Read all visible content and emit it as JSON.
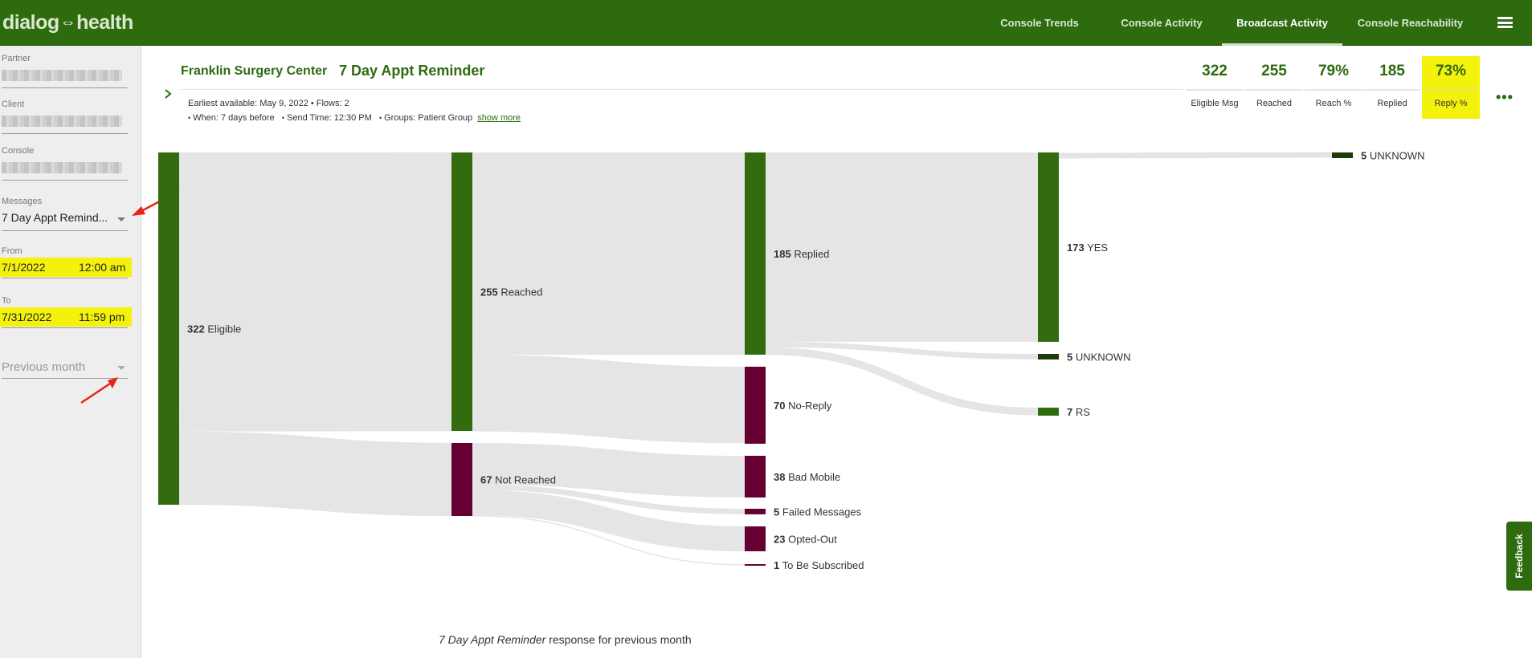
{
  "brand": {
    "logo_left": "dialog",
    "logo_sep": "⇔",
    "logo_right": "health"
  },
  "nav": {
    "items": [
      {
        "label": "Console Trends"
      },
      {
        "label": "Console Activity"
      },
      {
        "label": "Broadcast Activity",
        "active": true
      },
      {
        "label": "Console Reachability"
      }
    ]
  },
  "sidebar": {
    "partner_label": "Partner",
    "client_label": "Client",
    "console_label": "Console",
    "messages_label": "Messages",
    "messages_value": "7 Day Appt Remind...",
    "from_label": "From",
    "from_date": "7/1/2022",
    "from_time": "12:00 am",
    "to_label": "To",
    "to_date": "7/31/2022",
    "to_time": "11:59 pm",
    "period_placeholder": "Previous month"
  },
  "header": {
    "org": "Franklin Surgery Center",
    "message": "7 Day Appt Reminder",
    "earliest": "Earliest available: May 9, 2022 • Flows: 2",
    "when": "When: 7 days before",
    "send_time": "Send Time: 12:30 PM",
    "groups": "Groups: Patient Group",
    "show_more": "show more",
    "bullet": "•"
  },
  "stats": [
    {
      "value": "322",
      "label": "Eligible Msg"
    },
    {
      "value": "255",
      "label": "Reached"
    },
    {
      "value": "79%",
      "label": "Reach %"
    },
    {
      "value": "185",
      "label": "Replied"
    },
    {
      "value": "73%",
      "label": "Reply %",
      "highlight": true
    }
  ],
  "more_menu": "•••",
  "colors": {
    "brand_green": "#2e6b0f",
    "node_green": "#336c0e",
    "node_dark": "#1c3d08",
    "node_maroon": "#660033",
    "link": "#e4e4e4",
    "highlight": "#f4f10c"
  },
  "chart_data": {
    "type": "sankey",
    "nodes": [
      {
        "id": "eligible",
        "value": 322,
        "label": "Eligible"
      },
      {
        "id": "reached",
        "value": 255,
        "label": "Reached"
      },
      {
        "id": "not_reached",
        "value": 67,
        "label": "Not Reached"
      },
      {
        "id": "replied",
        "value": 185,
        "label": "Replied"
      },
      {
        "id": "no_reply",
        "value": 70,
        "label": "No-Reply"
      },
      {
        "id": "bad_mobile",
        "value": 38,
        "label": "Bad Mobile"
      },
      {
        "id": "failed",
        "value": 5,
        "label": "Failed Messages"
      },
      {
        "id": "opted_out",
        "value": 23,
        "label": "Opted-Out"
      },
      {
        "id": "to_be_sub",
        "value": 1,
        "label": "To Be Subscribed"
      },
      {
        "id": "unknown_top",
        "value": 5,
        "label": "UNKNOWN"
      },
      {
        "id": "yes",
        "value": 173,
        "label": "YES"
      },
      {
        "id": "unknown",
        "value": 5,
        "label": "UNKNOWN"
      },
      {
        "id": "rs",
        "value": 7,
        "label": "RS"
      }
    ],
    "links": [
      {
        "source": "eligible",
        "target": "reached",
        "value": 255
      },
      {
        "source": "eligible",
        "target": "not_reached",
        "value": 67
      },
      {
        "source": "reached",
        "target": "replied",
        "value": 185
      },
      {
        "source": "reached",
        "target": "no_reply",
        "value": 70
      },
      {
        "source": "not_reached",
        "target": "bad_mobile",
        "value": 38
      },
      {
        "source": "not_reached",
        "target": "failed",
        "value": 5
      },
      {
        "source": "not_reached",
        "target": "opted_out",
        "value": 23
      },
      {
        "source": "not_reached",
        "target": "to_be_sub",
        "value": 1
      },
      {
        "source": "replied",
        "target": "yes",
        "value": 173
      },
      {
        "source": "replied",
        "target": "unknown",
        "value": 5
      },
      {
        "source": "replied",
        "target": "rs",
        "value": 7
      }
    ],
    "caption_italic": "7 Day Appt Reminder",
    "caption_rest": " response for previous month"
  },
  "feedback_label": "Feedback"
}
